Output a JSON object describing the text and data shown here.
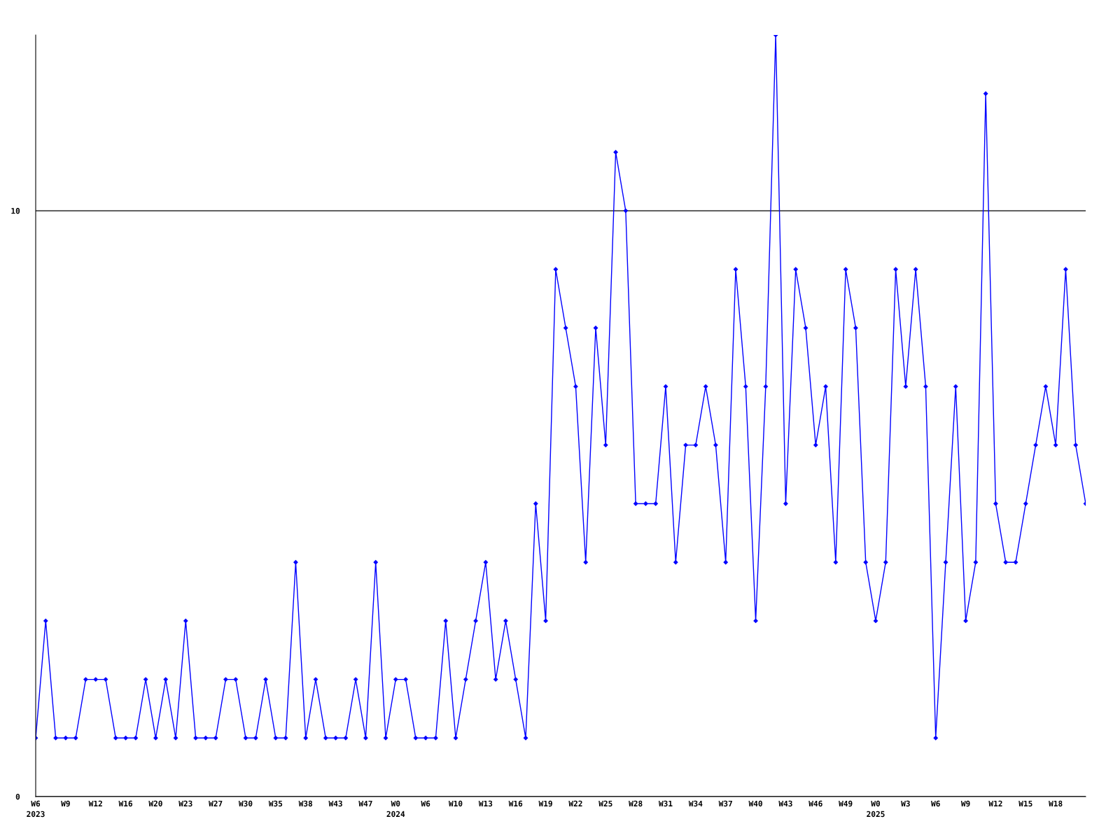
{
  "chart_data": {
    "type": "line",
    "categories": [
      "W6\n2023",
      null,
      null,
      "W9",
      null,
      null,
      "W12",
      null,
      null,
      "W16",
      null,
      null,
      "W20",
      null,
      null,
      "W23",
      null,
      null,
      "W27",
      null,
      null,
      "W30",
      null,
      null,
      "W35",
      null,
      null,
      "W38",
      null,
      null,
      "W43",
      null,
      null,
      "W47",
      null,
      null,
      "W0\n2024",
      null,
      null,
      "W6",
      null,
      null,
      "W10",
      null,
      null,
      "W13",
      null,
      null,
      "W16",
      null,
      null,
      "W19",
      null,
      null,
      "W22",
      null,
      null,
      "W25",
      null,
      null,
      "W28",
      null,
      null,
      "W31",
      null,
      null,
      "W34",
      null,
      null,
      "W37",
      null,
      null,
      "W40",
      null,
      null,
      "W43",
      null,
      null,
      "W46",
      null,
      null,
      "W49",
      null,
      null,
      "W0\n2025",
      null,
      null,
      "W3",
      null,
      null,
      "W6",
      null,
      null,
      "W9",
      null,
      null,
      "W12",
      null,
      null,
      "W15",
      null,
      null,
      "W18",
      null,
      null,
      null
    ],
    "series": [
      {
        "color": "#0000ff",
        "values": [
          1,
          3,
          1,
          1,
          1,
          2,
          2,
          2,
          1,
          1,
          1,
          2,
          1,
          2,
          1,
          3,
          1,
          1,
          1,
          2,
          2,
          1,
          1,
          2,
          1,
          1,
          4,
          1,
          2,
          1,
          1,
          1,
          2,
          1,
          4,
          1,
          2,
          2,
          1,
          1,
          1,
          3,
          1,
          2,
          3,
          4,
          2,
          3,
          2,
          1,
          5,
          3,
          9,
          8,
          7,
          4,
          8,
          6,
          11,
          10,
          5,
          5,
          5,
          7,
          4,
          6,
          6,
          7,
          6,
          4,
          9,
          7,
          3,
          7,
          13,
          5,
          9,
          8,
          6,
          7,
          4,
          9,
          8,
          4,
          3,
          4,
          9,
          7,
          9,
          7,
          1,
          4,
          7,
          3,
          4,
          12,
          5,
          4,
          4,
          5,
          6,
          7,
          6,
          9,
          6,
          5
        ]
      }
    ],
    "ylim": [
      0,
      13
    ],
    "yticks": [
      0,
      10
    ],
    "grid": "y",
    "marker": "diamond",
    "line_style": "solid"
  }
}
